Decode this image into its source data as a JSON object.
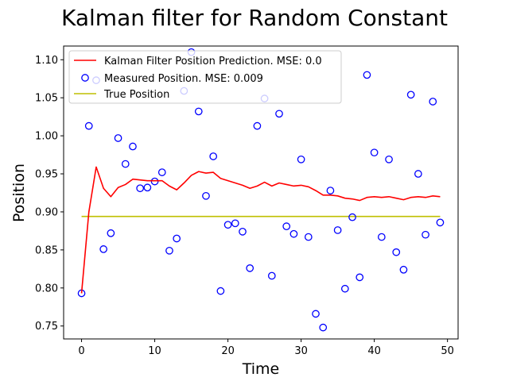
{
  "chart_data": {
    "type": "line",
    "title": "Kalman filter for Random Constant",
    "xlabel": "Time",
    "ylabel": "Position",
    "xlim": [
      -2.45,
      51.45
    ],
    "ylim": [
      0.733,
      1.118
    ],
    "xticks": [
      0,
      10,
      20,
      30,
      40,
      50
    ],
    "yticks": [
      0.75,
      0.8,
      0.85,
      0.9,
      0.95,
      1.0,
      1.05,
      1.1
    ],
    "grid": false,
    "legend_position": "top-left",
    "series": [
      {
        "name": "Kalman Filter Position Prediction. MSE: 0.0",
        "kind": "line",
        "color": "#ff0000",
        "x": [
          0,
          1,
          2,
          3,
          4,
          5,
          6,
          7,
          8,
          9,
          10,
          11,
          12,
          13,
          14,
          15,
          16,
          17,
          18,
          19,
          20,
          21,
          22,
          23,
          24,
          25,
          26,
          27,
          28,
          29,
          30,
          31,
          32,
          33,
          34,
          35,
          36,
          37,
          38,
          39,
          40,
          41,
          42,
          43,
          44,
          45,
          46,
          47,
          48,
          49
        ],
        "y": [
          0.793,
          0.9,
          0.959,
          0.931,
          0.92,
          0.932,
          0.936,
          0.943,
          0.942,
          0.941,
          0.941,
          0.941,
          0.934,
          0.929,
          0.938,
          0.948,
          0.953,
          0.951,
          0.952,
          0.944,
          0.941,
          0.938,
          0.935,
          0.931,
          0.934,
          0.939,
          0.934,
          0.938,
          0.936,
          0.934,
          0.935,
          0.933,
          0.928,
          0.922,
          0.922,
          0.921,
          0.918,
          0.917,
          0.915,
          0.919,
          0.92,
          0.919,
          0.92,
          0.918,
          0.916,
          0.919,
          0.92,
          0.919,
          0.921,
          0.92
        ]
      },
      {
        "name": "Measured Position. MSE: 0.009",
        "kind": "scatter",
        "color": "#0000ff",
        "x": [
          0,
          1,
          2,
          3,
          4,
          5,
          6,
          7,
          8,
          9,
          10,
          11,
          12,
          13,
          14,
          15,
          16,
          17,
          18,
          19,
          20,
          21,
          22,
          23,
          24,
          25,
          26,
          27,
          28,
          29,
          30,
          31,
          32,
          33,
          34,
          35,
          36,
          37,
          38,
          39,
          40,
          41,
          42,
          43,
          44,
          45,
          46,
          47,
          48,
          49
        ],
        "y": [
          0.793,
          1.013,
          1.073,
          0.851,
          0.872,
          0.997,
          0.963,
          0.986,
          0.931,
          0.932,
          0.94,
          0.952,
          0.849,
          0.865,
          1.059,
          1.11,
          1.032,
          0.921,
          0.973,
          0.796,
          0.883,
          0.885,
          0.874,
          0.826,
          1.013,
          1.049,
          0.816,
          1.029,
          0.881,
          0.871,
          0.969,
          0.867,
          0.766,
          0.748,
          0.928,
          0.876,
          0.799,
          0.893,
          0.814,
          1.08,
          0.978,
          0.867,
          0.969,
          0.847,
          0.824,
          1.054,
          0.95,
          0.87,
          1.045,
          0.886
        ]
      },
      {
        "name": "True Position",
        "kind": "line",
        "color": "#bfbf00",
        "x": [
          0,
          49
        ],
        "y": [
          0.894,
          0.894
        ]
      }
    ]
  }
}
